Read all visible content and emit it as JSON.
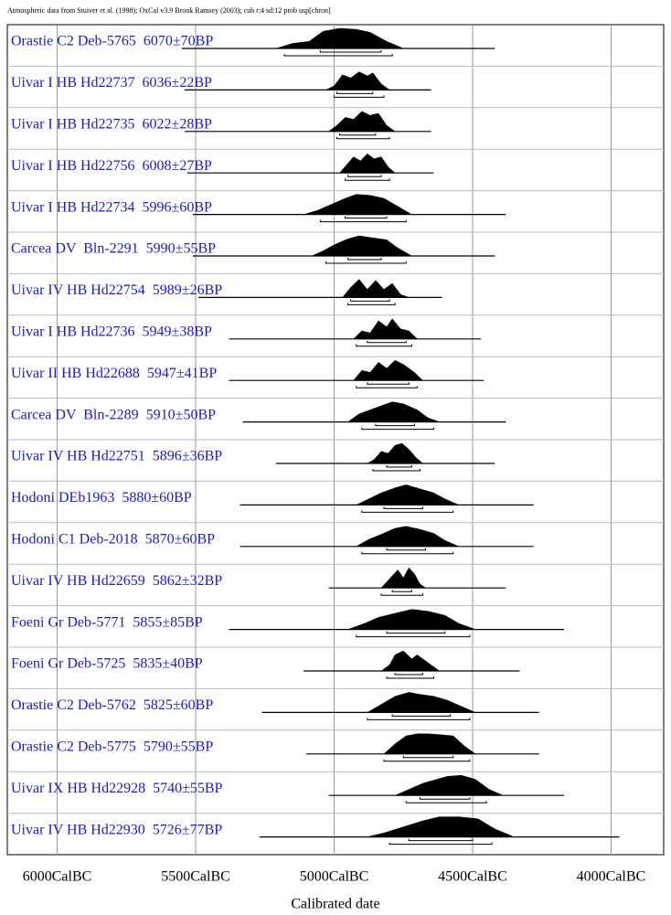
{
  "chart_data": {
    "type": "multiplot",
    "title": "Atmospheric data from Stuiver et al. (1998); OxCal v3.9 Bronk Ramsey (2003); cub r:4 sd:12 prob usp[chron]",
    "xlabel": "Calibrated date",
    "xlim": [
      6180,
      3810
    ],
    "xticks": [
      {
        "value": 6000,
        "label": "6000CalBC"
      },
      {
        "value": 5500,
        "label": "5500CalBC"
      },
      {
        "value": 5000,
        "label": "5000CalBC"
      },
      {
        "value": 4500,
        "label": "4500CalBC"
      },
      {
        "value": 4000,
        "label": "4000CalBC"
      }
    ],
    "grid": true,
    "color": "#000000",
    "label_color": "#1a1acc",
    "rows": [
      {
        "label": "Orastie C2 Deb-5765  6070±70BP",
        "line": [
          5550,
          4420
        ],
        "x": [
          5210,
          5150,
          5090,
          5040,
          4980,
          4920,
          4870,
          4810,
          4750
        ],
        "values": [
          0,
          0.25,
          0.35,
          0.85,
          1,
          0.95,
          0.8,
          0.35,
          0
        ],
        "hpd68": [
          5050,
          4830
        ],
        "hpd95": [
          5180,
          4790
        ]
      },
      {
        "label": "Uivar I HB Hd22737  6036±22BP",
        "line": [
          5540,
          4650
        ],
        "x": [
          5030,
          5000,
          4970,
          4940,
          4910,
          4880,
          4860,
          4830,
          4800
        ],
        "values": [
          0,
          0.2,
          0.75,
          0.6,
          0.9,
          0.7,
          0.85,
          0.3,
          0
        ],
        "hpd68": [
          4990,
          4860
        ],
        "hpd95": [
          5000,
          4820
        ]
      },
      {
        "label": "Uivar I HB Hd22735  6022±28BP",
        "line": [
          5540,
          4650
        ],
        "x": [
          5020,
          4990,
          4960,
          4930,
          4900,
          4870,
          4840,
          4810,
          4780
        ],
        "values": [
          0,
          0.3,
          0.7,
          0.6,
          1,
          0.8,
          0.9,
          0.3,
          0
        ],
        "hpd68": [
          4980,
          4850
        ],
        "hpd95": [
          4990,
          4800
        ]
      },
      {
        "label": "Uivar I HB Hd22756  6008±27BP",
        "line": [
          5530,
          4640
        ],
        "x": [
          4980,
          4955,
          4930,
          4905,
          4880,
          4855,
          4830,
          4805,
          4780
        ],
        "values": [
          0,
          0.4,
          0.8,
          0.6,
          0.95,
          0.7,
          0.8,
          0.3,
          0
        ],
        "hpd68": [
          4950,
          4830
        ],
        "hpd95": [
          4960,
          4800
        ]
      },
      {
        "label": "Uivar I HB Hd22734  5996±60BP",
        "line": [
          5510,
          4380
        ],
        "x": [
          5110,
          5060,
          5010,
          4960,
          4920,
          4870,
          4820,
          4770,
          4720
        ],
        "values": [
          0,
          0.2,
          0.5,
          0.8,
          1,
          0.95,
          0.8,
          0.4,
          0
        ],
        "hpd68": [
          4960,
          4810
        ],
        "hpd95": [
          5050,
          4740
        ]
      },
      {
        "label": "Carcea DV  Bln-2291  5990±55BP",
        "line": [
          5510,
          4420
        ],
        "x": [
          5080,
          5040,
          5000,
          4950,
          4910,
          4860,
          4810,
          4770,
          4720
        ],
        "values": [
          0,
          0.25,
          0.55,
          0.85,
          1,
          0.9,
          0.8,
          0.4,
          0
        ],
        "hpd68": [
          4950,
          4830
        ],
        "hpd95": [
          5030,
          4740
        ]
      },
      {
        "label": "Uivar IV HB Hd22754  5989±26BP",
        "line": [
          5490,
          4610
        ],
        "x": [
          4970,
          4940,
          4910,
          4880,
          4850,
          4820,
          4790,
          4760,
          4730
        ],
        "values": [
          0,
          0.5,
          0.9,
          0.4,
          0.85,
          0.4,
          0.7,
          0.15,
          0
        ],
        "hpd68": [
          4940,
          4800
        ],
        "hpd95": [
          4950,
          4780
        ]
      },
      {
        "label": "Uivar I HB Hd22736  5949±38BP",
        "line": [
          5380,
          4470
        ],
        "x": [
          4930,
          4900,
          4870,
          4840,
          4810,
          4790,
          4760,
          4730,
          4700
        ],
        "values": [
          0,
          0.4,
          0.3,
          0.9,
          0.6,
          1,
          0.5,
          0.4,
          0
        ],
        "hpd68": [
          4880,
          4740
        ],
        "hpd95": [
          4920,
          4720
        ]
      },
      {
        "label": "Uivar II HB Hd22688  5947±41BP",
        "line": [
          5380,
          4460
        ],
        "x": [
          4930,
          4900,
          4870,
          4840,
          4810,
          4780,
          4750,
          4710,
          4680
        ],
        "values": [
          0,
          0.5,
          0.4,
          0.9,
          0.6,
          1,
          0.8,
          0.4,
          0
        ],
        "hpd68": [
          4880,
          4730
        ],
        "hpd95": [
          4920,
          4700
        ]
      },
      {
        "label": "Carcea DV  Bln-2289  5910±50BP",
        "line": [
          5330,
          4380
        ],
        "x": [
          4950,
          4910,
          4870,
          4830,
          4790,
          4750,
          4700,
          4660,
          4620
        ],
        "values": [
          0,
          0.4,
          0.6,
          0.8,
          1,
          0.9,
          0.6,
          0.2,
          0
        ],
        "hpd68": [
          4850,
          4710
        ],
        "hpd95": [
          4900,
          4640
        ]
      },
      {
        "label": "Uivar IV HB Hd22751  5896±36BP",
        "line": [
          5210,
          4420
        ],
        "x": [
          4880,
          4855,
          4830,
          4805,
          4780,
          4755,
          4730,
          4705,
          4680
        ],
        "values": [
          0,
          0.2,
          0.6,
          0.5,
          0.9,
          1,
          0.7,
          0.3,
          0
        ],
        "hpd68": [
          4810,
          4720
        ],
        "hpd95": [
          4860,
          4690
        ]
      },
      {
        "label": "Hodoni DEb1963  5880±60BP",
        "line": [
          5340,
          4280
        ],
        "x": [
          4920,
          4875,
          4830,
          4780,
          4740,
          4690,
          4640,
          4600,
          4550
        ],
        "values": [
          0,
          0.3,
          0.6,
          0.85,
          1,
          0.8,
          0.6,
          0.3,
          0
        ],
        "hpd68": [
          4820,
          4680
        ],
        "hpd95": [
          4900,
          4570
        ]
      },
      {
        "label": "Hodoni C1 Deb-2018  5870±60BP",
        "line": [
          5340,
          4280
        ],
        "x": [
          4920,
          4875,
          4830,
          4780,
          4740,
          4690,
          4640,
          4600,
          4550
        ],
        "values": [
          0,
          0.35,
          0.6,
          0.9,
          1,
          0.85,
          0.65,
          0.3,
          0
        ],
        "hpd68": [
          4810,
          4670
        ],
        "hpd95": [
          4900,
          4570
        ]
      },
      {
        "label": "Uivar IV HB Hd22659  5862±32BP",
        "line": [
          5020,
          4380
        ],
        "x": [
          4830,
          4810,
          4790,
          4770,
          4750,
          4730,
          4710,
          4690,
          4670
        ],
        "values": [
          0,
          0.3,
          0.6,
          0.9,
          0.5,
          1,
          0.7,
          0.2,
          0
        ],
        "hpd68": [
          4790,
          4720
        ],
        "hpd95": [
          4830,
          4680
        ]
      },
      {
        "label": "Foeni Gr Deb-5771  5855±85BP",
        "line": [
          5380,
          4170
        ],
        "x": [
          4950,
          4890,
          4840,
          4780,
          4720,
          4660,
          4600,
          4550,
          4490
        ],
        "values": [
          0,
          0.3,
          0.6,
          0.8,
          1,
          0.9,
          0.7,
          0.3,
          0
        ],
        "hpd68": [
          4810,
          4600
        ],
        "hpd95": [
          4920,
          4510
        ]
      },
      {
        "label": "Foeni Gr Deb-5725  5835±40BP",
        "line": [
          5110,
          4330
        ],
        "x": [
          4830,
          4800,
          4780,
          4750,
          4720,
          4700,
          4670,
          4650,
          4620
        ],
        "values": [
          0,
          0.3,
          0.8,
          1,
          0.6,
          0.8,
          0.5,
          0.3,
          0
        ],
        "hpd68": [
          4780,
          4680
        ],
        "hpd95": [
          4810,
          4640
        ]
      },
      {
        "label": "Orastie C2 Deb-5762  5825±60BP",
        "line": [
          5260,
          4260
        ],
        "x": [
          4880,
          4830,
          4780,
          4730,
          4690,
          4640,
          4590,
          4540,
          4490
        ],
        "values": [
          0,
          0.4,
          0.8,
          1,
          0.9,
          0.8,
          0.6,
          0.3,
          0
        ],
        "hpd68": [
          4790,
          4580
        ],
        "hpd95": [
          4880,
          4510
        ]
      },
      {
        "label": "Orastie C2 Deb-5775  5790±55BP",
        "line": [
          5100,
          4260
        ],
        "x": [
          4820,
          4780,
          4740,
          4700,
          4660,
          4610,
          4570,
          4530,
          4490
        ],
        "values": [
          0,
          0.5,
          0.9,
          1,
          1,
          0.95,
          0.9,
          0.4,
          0
        ],
        "hpd68": [
          4750,
          4570
        ],
        "hpd95": [
          4820,
          4510
        ]
      },
      {
        "label": "Uivar IX HB Hd22928  5740±55BP",
        "line": [
          5020,
          4170
        ],
        "x": [
          4780,
          4730,
          4680,
          4630,
          4590,
          4540,
          4490,
          4440,
          4390
        ],
        "values": [
          0,
          0.3,
          0.6,
          0.8,
          0.95,
          1,
          0.8,
          0.3,
          0
        ],
        "hpd68": [
          4690,
          4510
        ],
        "hpd95": [
          4740,
          4450
        ]
      },
      {
        "label": "Uivar IV HB Hd22930  5726±77BP",
        "line": [
          5270,
          3970
        ],
        "x": [
          4880,
          4820,
          4750,
          4680,
          4620,
          4550,
          4480,
          4420,
          4350
        ],
        "values": [
          0,
          0.2,
          0.5,
          0.8,
          1,
          1,
          0.9,
          0.4,
          0
        ],
        "hpd68": [
          4730,
          4500
        ],
        "hpd95": [
          4800,
          4430
        ]
      }
    ]
  }
}
